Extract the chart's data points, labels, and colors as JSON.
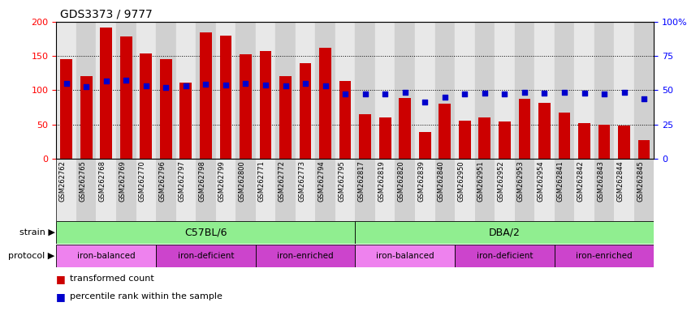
{
  "title": "GDS3373 / 9777",
  "samples": [
    "GSM262762",
    "GSM262765",
    "GSM262768",
    "GSM262769",
    "GSM262770",
    "GSM262796",
    "GSM262797",
    "GSM262798",
    "GSM262799",
    "GSM262800",
    "GSM262771",
    "GSM262772",
    "GSM262773",
    "GSM262794",
    "GSM262795",
    "GSM262817",
    "GSM262819",
    "GSM262820",
    "GSM262839",
    "GSM262840",
    "GSM262950",
    "GSM262951",
    "GSM262952",
    "GSM262953",
    "GSM262954",
    "GSM262841",
    "GSM262842",
    "GSM262843",
    "GSM262844",
    "GSM262845"
  ],
  "bar_heights": [
    145,
    120,
    192,
    178,
    154,
    145,
    111,
    185,
    180,
    152,
    157,
    120,
    140,
    162,
    113,
    65,
    60,
    88,
    39,
    80,
    56,
    60,
    54,
    87,
    82,
    67,
    52,
    50,
    48,
    27
  ],
  "blue_dot_left_axis": [
    110,
    105,
    113,
    115,
    106,
    104,
    106,
    109,
    108,
    110,
    108,
    106,
    110,
    106,
    95,
    95,
    95,
    97,
    83,
    90,
    95,
    96,
    95,
    97,
    96,
    97,
    96,
    95,
    97,
    87
  ],
  "bar_color": "#CC0000",
  "dot_color": "#0000CC",
  "left_ylim": [
    0,
    200
  ],
  "left_yticks": [
    0,
    50,
    100,
    150,
    200
  ],
  "right_yticks": [
    0,
    25,
    50,
    75,
    100
  ],
  "right_yticklabels": [
    "0",
    "25",
    "50",
    "75",
    "100%"
  ],
  "tick_bg_colors": [
    "#e8e8e8",
    "#d0d0d0"
  ],
  "background_color": "#ffffff",
  "strain_groups": [
    {
      "label": "C57BL/6",
      "start": 0,
      "end": 14,
      "color": "#90EE90"
    },
    {
      "label": "DBA/2",
      "start": 15,
      "end": 29,
      "color": "#90EE90"
    }
  ],
  "protocol_groups": [
    {
      "label": "iron-balanced",
      "start": 0,
      "end": 4,
      "color": "#EE82EE"
    },
    {
      "label": "iron-deficient",
      "start": 5,
      "end": 9,
      "color": "#CC44CC"
    },
    {
      "label": "iron-enriched",
      "start": 10,
      "end": 14,
      "color": "#CC44CC"
    },
    {
      "label": "iron-balanced",
      "start": 15,
      "end": 19,
      "color": "#EE82EE"
    },
    {
      "label": "iron-deficient",
      "start": 20,
      "end": 24,
      "color": "#CC44CC"
    },
    {
      "label": "iron-enriched",
      "start": 25,
      "end": 29,
      "color": "#CC44CC"
    }
  ]
}
